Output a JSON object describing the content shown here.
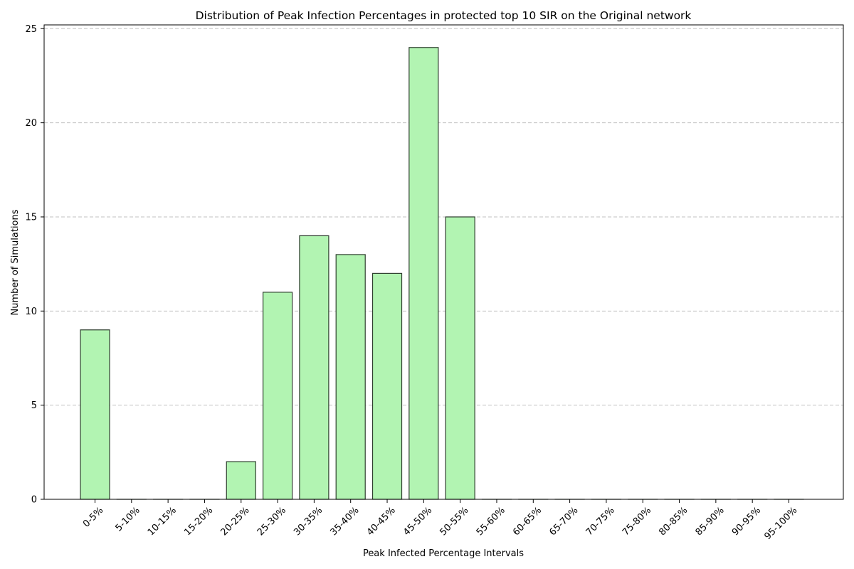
{
  "chart_data": {
    "type": "bar",
    "title": "Distribution of Peak Infection Percentages in protected top 10 SIR on the Original network",
    "xlabel": "Peak Infected Percentage Intervals",
    "ylabel": "Number of Simulations",
    "categories": [
      "0-5%",
      "5-10%",
      "10-15%",
      "15-20%",
      "20-25%",
      "25-30%",
      "30-35%",
      "35-40%",
      "40-45%",
      "45-50%",
      "50-55%",
      "55-60%",
      "60-65%",
      "65-70%",
      "70-75%",
      "75-80%",
      "80-85%",
      "85-90%",
      "90-95%",
      "95-100%"
    ],
    "values": [
      9,
      0,
      0,
      0,
      2,
      11,
      14,
      13,
      12,
      24,
      15,
      0,
      0,
      0,
      0,
      0,
      0,
      0,
      0,
      0
    ],
    "ylim": [
      0,
      25.2
    ],
    "yticks": [
      "0",
      "5",
      "10",
      "15",
      "20",
      "25"
    ],
    "grid": "y, dashed",
    "legend": "none",
    "colors": {
      "bar_fill": "#b2f4b2",
      "bar_edge": "#2f3f2f",
      "grid": "#c0c0c0"
    }
  }
}
